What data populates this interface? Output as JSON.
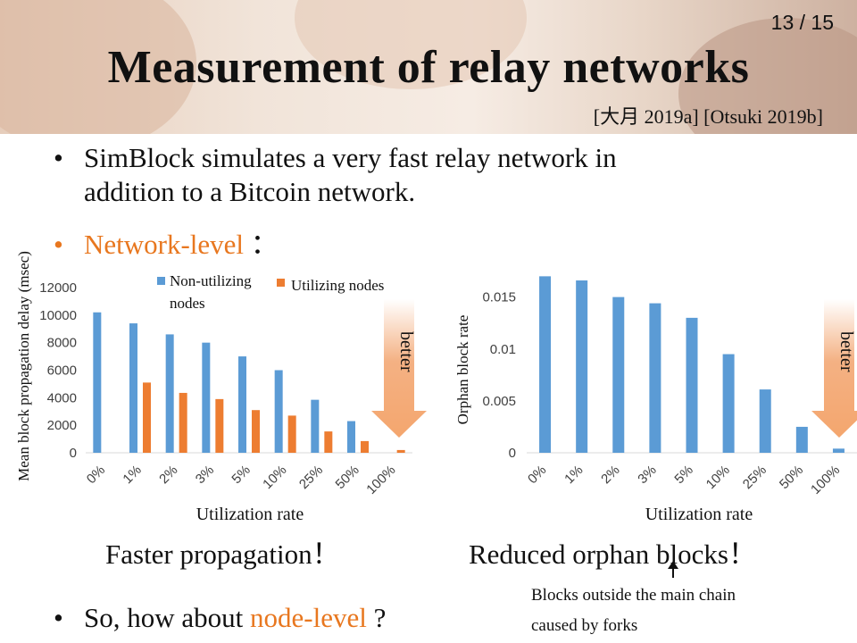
{
  "slide": {
    "page_number": "13 / 15",
    "title": "Measurement of relay networks",
    "citation": "[大月 2019a] [Otsuki 2019b]",
    "bullets": {
      "b1_line1": "SimBlock simulates a very fast relay network in",
      "b1_line2": "addition to a Bitcoin network.",
      "b2_prefix": "Network-level",
      "b2_suffix": "：",
      "b3_prefix": "So, how about",
      "b3_highlight": "node-level",
      "b3_suffix": "?"
    },
    "captions": {
      "left": "Faster propagation！",
      "right": "Reduced orphan blocks！",
      "note_line1": "Blocks outside the main chain",
      "note_line2": "caused by forks"
    },
    "better_label": "better"
  },
  "colors": {
    "accent": "#e8771f",
    "series_blue": "#5b9bd5",
    "series_orange": "#ed7d31",
    "arrow": "#f4b183"
  },
  "chart_data": [
    {
      "type": "bar",
      "title": "",
      "xlabel": "Utilization rate",
      "ylabel": "Mean block propagation delay (msec)",
      "categories": [
        "0%",
        "1%",
        "2%",
        "3%",
        "5%",
        "10%",
        "25%",
        "50%",
        "100%"
      ],
      "ylim": [
        0,
        12000
      ],
      "yticks": [
        "0",
        "2000",
        "4000",
        "6000",
        "8000",
        "10000",
        "12000"
      ],
      "legend_position": "top",
      "grid": false,
      "series": [
        {
          "name": "Non-utilizing nodes",
          "color": "#5b9bd5",
          "values": [
            10200,
            9400,
            8600,
            8000,
            7000,
            6000,
            3850,
            2300,
            null
          ]
        },
        {
          "name": "Utilizing nodes",
          "color": "#ed7d31",
          "values": [
            null,
            5100,
            4350,
            3900,
            3100,
            2700,
            1550,
            850,
            200
          ]
        }
      ]
    },
    {
      "type": "bar",
      "title": "",
      "xlabel": "Utilization rate",
      "ylabel": "Orphan block rate",
      "categories": [
        "0%",
        "1%",
        "2%",
        "3%",
        "5%",
        "10%",
        "25%",
        "50%",
        "100%"
      ],
      "ylim": [
        0,
        0.016
      ],
      "yticks": [
        "0",
        "0.005",
        "0.01",
        "0.015"
      ],
      "legend_position": "none",
      "grid": false,
      "series": [
        {
          "color": "#5b9bd5",
          "values": [
            0.017,
            0.0166,
            0.015,
            0.0144,
            0.013,
            0.0095,
            0.0061,
            0.0025,
            0.0004
          ]
        }
      ]
    }
  ]
}
